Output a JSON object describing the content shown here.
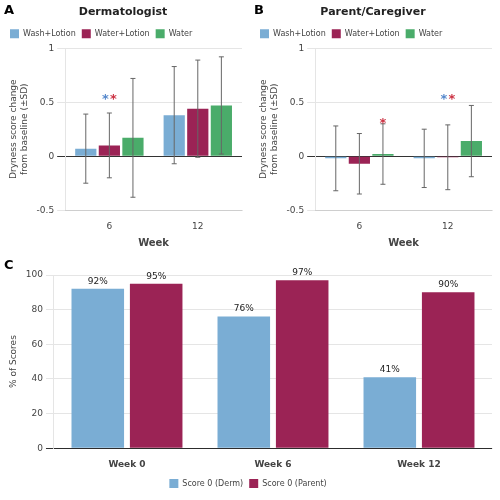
{
  "chart_data": [
    {
      "type": "bar",
      "panel_label": "A",
      "title": "Dermatologist",
      "xlabel": "Week",
      "ylabel": "Dryness score change\nfrom baseline (±SD)",
      "categories": [
        "6",
        "12"
      ],
      "series": [
        {
          "name": "Wash+Lotion",
          "color": "#7aadd4",
          "values": [
            0.07,
            0.38
          ],
          "errors": [
            0.32,
            0.45
          ]
        },
        {
          "name": "Water+Lotion",
          "color": "#9b2355",
          "values": [
            0.1,
            0.44
          ],
          "errors": [
            0.3,
            0.45
          ]
        },
        {
          "name": "Water",
          "color": "#4aac6a",
          "values": [
            0.17,
            0.47
          ],
          "errors": [
            0.55,
            0.45
          ]
        }
      ],
      "ylim": [
        -0.5,
        1.0
      ],
      "yticks": [
        -0.5,
        0,
        0.5,
        1
      ],
      "grid": true,
      "legend": "upper left",
      "annotations": [
        {
          "text": "*",
          "color": "#5588cc",
          "category": "6",
          "series": "Water+Lotion",
          "y": 0.52
        },
        {
          "text": "*",
          "color": "#cc3344",
          "category": "6",
          "series": "Water+Lotion",
          "y": 0.52
        }
      ]
    },
    {
      "type": "bar",
      "panel_label": "B",
      "title": "Parent/Caregiver",
      "xlabel": "Week",
      "ylabel": "Dryness score change\nfrom baseline (±SD)",
      "categories": [
        "6",
        "12"
      ],
      "series": [
        {
          "name": "Wash+Lotion",
          "color": "#7aadd4",
          "values": [
            -0.02,
            -0.02
          ],
          "errors": [
            0.3,
            0.27
          ]
        },
        {
          "name": "Water+Lotion",
          "color": "#9b2355",
          "values": [
            -0.07,
            -0.01
          ],
          "errors": [
            0.28,
            0.3
          ]
        },
        {
          "name": "Water",
          "color": "#4aac6a",
          "values": [
            0.02,
            0.14
          ],
          "errors": [
            0.28,
            0.33
          ]
        }
      ],
      "ylim": [
        -0.5,
        1.0
      ],
      "yticks": [
        -0.5,
        0,
        0.5,
        1
      ],
      "grid": true,
      "legend": "upper left",
      "annotations": [
        {
          "text": "*",
          "color": "#cc3344",
          "category": "6",
          "series": "Water",
          "y": 0.3
        },
        {
          "text": "*",
          "color": "#5588cc",
          "category": "12",
          "series": "Water+Lotion",
          "y": 0.52
        },
        {
          "text": "*",
          "color": "#cc3344",
          "category": "12",
          "series": "Water+Lotion",
          "y": 0.52
        }
      ]
    },
    {
      "type": "bar",
      "panel_label": "C",
      "ylabel": "% of Scores",
      "categories": [
        "Week 0",
        "Week 6",
        "Week 12"
      ],
      "series": [
        {
          "name": "Score 0 (Derm)",
          "color": "#7aadd4",
          "values": [
            92,
            76,
            41
          ],
          "value_labels": [
            "92%",
            "76%",
            "41%"
          ]
        },
        {
          "name": "Score 0 (Parent)",
          "color": "#9b2355",
          "values": [
            95,
            97,
            90
          ],
          "value_labels": [
            "95%",
            "97%",
            "90%"
          ]
        }
      ],
      "ylim": [
        0,
        100
      ],
      "yticks": [
        0,
        20,
        40,
        60,
        80,
        100
      ],
      "grid": true,
      "legend": "lower center",
      "data_labels": true
    }
  ]
}
